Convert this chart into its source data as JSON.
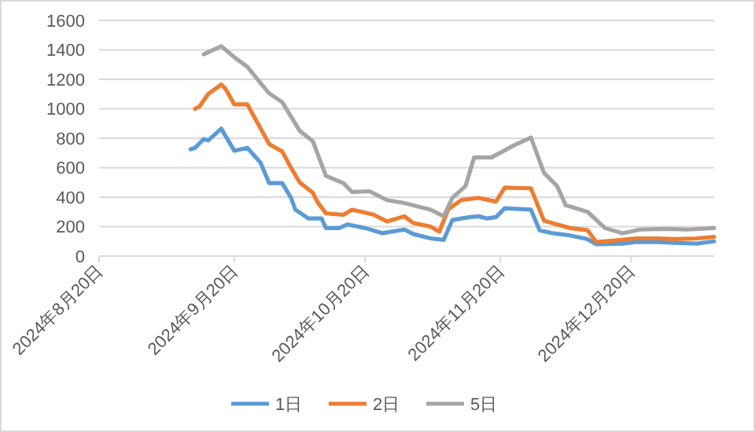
{
  "chart_data": {
    "type": "line",
    "xlim": [
      "2024-08-20",
      "2025-01-08"
    ],
    "xticks": [
      {
        "value": "2024-08-20",
        "label": "2024年8月20日"
      },
      {
        "value": "2024-09-20",
        "label": "2024年9月20日"
      },
      {
        "value": "2024-10-20",
        "label": "2024年10月20日"
      },
      {
        "value": "2024-11-20",
        "label": "2024年11月20日"
      },
      {
        "value": "2024-12-20",
        "label": "2024年12月20日"
      }
    ],
    "ylim": [
      0,
      1600
    ],
    "yticks": [
      0,
      200,
      400,
      600,
      800,
      1000,
      1200,
      1400,
      1600
    ],
    "grid": "y",
    "legend": "bottom",
    "marker": "none",
    "line_style": "solid",
    "series": [
      {
        "name": "1日",
        "color": "#5b9bd5",
        "x": [
          "2024-09-10",
          "2024-09-11",
          "2024-09-13",
          "2024-09-14",
          "2024-09-17",
          "2024-09-20",
          "2024-09-23",
          "2024-09-26",
          "2024-09-28",
          "2024-10-01",
          "2024-10-03",
          "2024-10-04",
          "2024-10-07",
          "2024-10-10",
          "2024-10-11",
          "2024-10-14",
          "2024-10-16",
          "2024-10-20",
          "2024-10-24",
          "2024-10-29",
          "2024-10-31",
          "2024-11-04",
          "2024-11-07",
          "2024-11-09",
          "2024-11-13",
          "2024-11-15",
          "2024-11-17",
          "2024-11-19",
          "2024-11-21",
          "2024-11-27",
          "2024-11-29",
          "2024-12-02",
          "2024-12-06",
          "2024-12-10",
          "2024-12-12",
          "2024-12-18",
          "2024-12-21",
          "2024-12-26",
          "2024-12-30",
          "2025-01-04",
          "2025-01-08"
        ],
        "values": [
          725,
          735,
          795,
          785,
          865,
          715,
          735,
          635,
          495,
          495,
          395,
          315,
          255,
          255,
          190,
          190,
          215,
          190,
          155,
          180,
          150,
          120,
          110,
          245,
          265,
          270,
          255,
          265,
          325,
          315,
          175,
          155,
          140,
          115,
          80,
          85,
          95,
          95,
          90,
          85,
          100
        ]
      },
      {
        "name": "2日",
        "color": "#ed7d31",
        "x": [
          "2024-09-11",
          "2024-09-12",
          "2024-09-14",
          "2024-09-17",
          "2024-09-18",
          "2024-09-20",
          "2024-09-23",
          "2024-09-28",
          "2024-10-01",
          "2024-10-03",
          "2024-10-05",
          "2024-10-08",
          "2024-10-09",
          "2024-10-11",
          "2024-10-15",
          "2024-10-17",
          "2024-10-20",
          "2024-10-22",
          "2024-10-25",
          "2024-10-29",
          "2024-10-31",
          "2024-11-04",
          "2024-11-06",
          "2024-11-08",
          "2024-11-11",
          "2024-11-15",
          "2024-11-19",
          "2024-11-21",
          "2024-11-27",
          "2024-11-30",
          "2024-12-03",
          "2024-12-06",
          "2024-12-10",
          "2024-12-12",
          "2024-12-16",
          "2024-12-21",
          "2024-12-26",
          "2024-12-30",
          "2025-01-04",
          "2025-01-08"
        ],
        "values": [
          1000,
          1015,
          1100,
          1165,
          1135,
          1030,
          1030,
          760,
          710,
          600,
          500,
          430,
          370,
          290,
          280,
          315,
          295,
          280,
          235,
          270,
          225,
          200,
          165,
          315,
          380,
          395,
          370,
          465,
          460,
          240,
          215,
          190,
          175,
          95,
          105,
          120,
          120,
          115,
          120,
          130
        ]
      },
      {
        "name": "5日",
        "color": "#a5a5a5",
        "x": [
          "2024-09-13",
          "2024-09-17",
          "2024-09-20",
          "2024-09-23",
          "2024-09-26",
          "2024-09-28",
          "2024-10-01",
          "2024-10-05",
          "2024-10-08",
          "2024-10-11",
          "2024-10-15",
          "2024-10-17",
          "2024-10-21",
          "2024-10-25",
          "2024-10-29",
          "2024-11-04",
          "2024-11-07",
          "2024-11-09",
          "2024-11-12",
          "2024-11-14",
          "2024-11-18",
          "2024-11-23",
          "2024-11-27",
          "2024-11-30",
          "2024-12-03",
          "2024-12-05",
          "2024-12-10",
          "2024-12-14",
          "2024-12-18",
          "2024-12-22",
          "2024-12-28",
          "2025-01-02",
          "2025-01-08"
        ],
        "values": [
          1370,
          1425,
          1350,
          1285,
          1175,
          1105,
          1045,
          850,
          780,
          545,
          495,
          435,
          440,
          380,
          360,
          315,
          270,
          395,
          475,
          670,
          670,
          750,
          805,
          565,
          475,
          345,
          300,
          190,
          155,
          180,
          185,
          180,
          190
        ]
      }
    ]
  }
}
